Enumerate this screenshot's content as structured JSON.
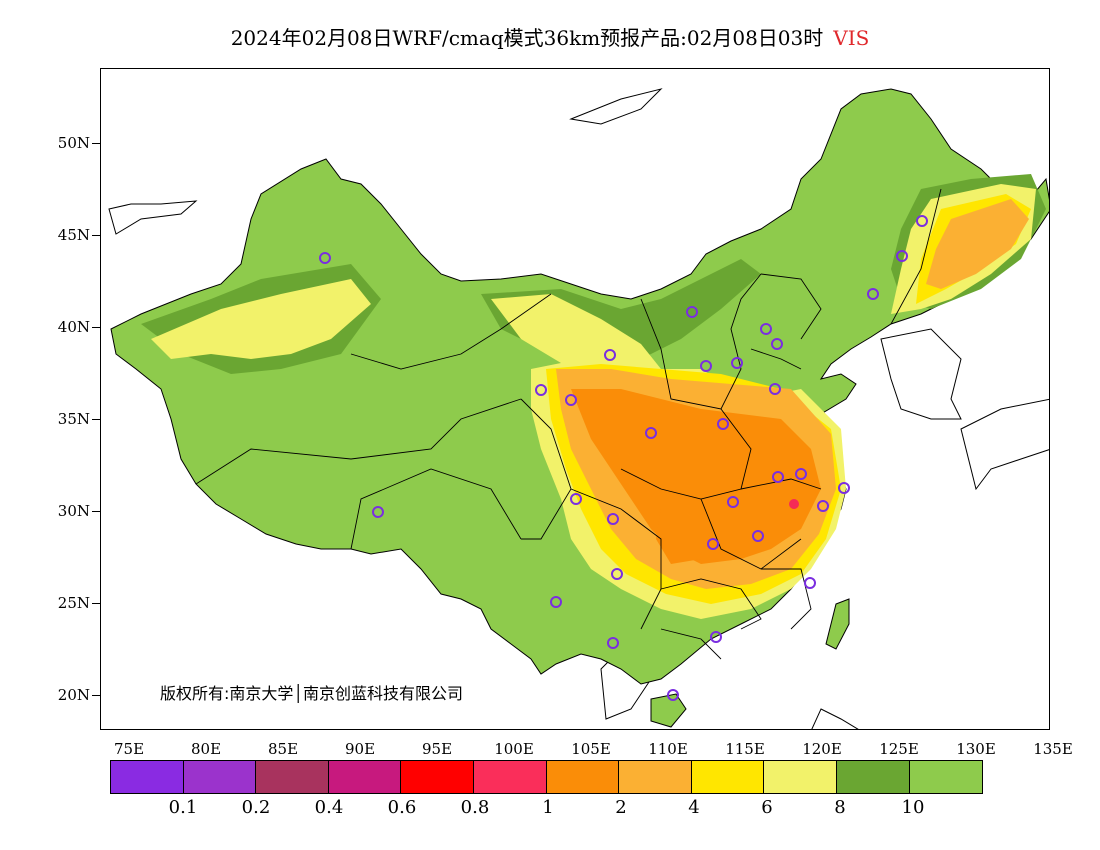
{
  "header": {
    "title": "2024年02月08日WRF/cmaq模式36km预报产品:02月08日03时",
    "variable": "VIS",
    "variable_color": "#e0282c"
  },
  "map": {
    "lat_labels": [
      "50N",
      "45N",
      "40N",
      "35N",
      "30N",
      "25N",
      "20N"
    ],
    "lon_labels": [
      "75E",
      "80E",
      "85E",
      "90E",
      "95E",
      "100E",
      "105E",
      "110E",
      "115E",
      "120E",
      "125E",
      "130E",
      "135E"
    ],
    "copyright": "版权所有:南京大学│南京创蓝科技有限公司",
    "palette": {
      "green_light": "#8ecb4c",
      "green_dark": "#6aa632",
      "yellow_light": "#f2f26a",
      "yellow": "#ffe600",
      "orange_light": "#fbb033",
      "orange": "#fa8d08",
      "red": "#f52a57",
      "station": "#7a2ee0"
    }
  },
  "legend": {
    "colors": [
      "#8a2be2",
      "#9b33cc",
      "#a8335e",
      "#c7197e",
      "#ff0000",
      "#fa2e5a",
      "#fa8d08",
      "#fbb033",
      "#ffe600",
      "#f2f26a",
      "#6aa632",
      "#8ecb4c"
    ],
    "labels": [
      "0.1",
      "0.2",
      "0.4",
      "0.6",
      "0.8",
      "1",
      "2",
      "4",
      "6",
      "8",
      "10"
    ]
  }
}
